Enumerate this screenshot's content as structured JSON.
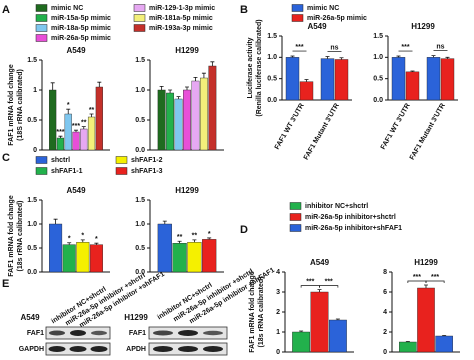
{
  "chart_data": [
    {
      "type": "bar",
      "panel": "A",
      "ylabel": [
        "FAF1 mRNA fold change",
        "(18S rRNA calibrated)"
      ],
      "subplots": [
        {
          "title": "A549",
          "ylim": [
            0,
            1.5
          ],
          "yticks": [
            0,
            0.5,
            1,
            1.5
          ]
        },
        {
          "title": "H1299",
          "ylim": [
            0,
            1.5
          ],
          "yticks": [
            {
              "value": 0,
              "label": "0.0"
            },
            0.5,
            {
              "value": 1,
              "label": "1.0"
            },
            1.5
          ]
        }
      ],
      "series": [
        {
          "name": "mimic NC",
          "color": "#1f6b1f",
          "values": [
            1.0,
            1.0
          ],
          "errors": [
            0.12,
            0.06
          ],
          "significance": [
            null,
            null
          ]
        },
        {
          "name": "miR-15a-5p mimic",
          "color": "#22b14c",
          "values": [
            0.2,
            0.95
          ],
          "errors": [
            0.03,
            0.05
          ],
          "significance": [
            "***",
            null
          ]
        },
        {
          "name": "miR-18a-5p mimic",
          "color": "#7fc7ef",
          "values": [
            0.6,
            0.85
          ],
          "errors": [
            0.08,
            0.04
          ],
          "significance": [
            "*",
            null
          ]
        },
        {
          "name": "miR-26a-5p mimic",
          "color": "#e84fd8",
          "values": [
            0.3,
            1.0
          ],
          "errors": [
            0.03,
            0.05
          ],
          "significance": [
            "***",
            null
          ]
        },
        {
          "name": "miR-129-1-3p mimic",
          "color": "#e6a8f2",
          "values": [
            0.35,
            1.15
          ],
          "errors": [
            0.04,
            0.06
          ],
          "significance": [
            "**",
            null
          ]
        },
        {
          "name": "miR-181a-5p mimic",
          "color": "#f3f07a",
          "values": [
            0.55,
            1.2
          ],
          "errors": [
            0.05,
            0.08
          ],
          "significance": [
            "**",
            null
          ]
        },
        {
          "name": "miR-193a-3p mimic",
          "color": "#c4302a",
          "values": [
            1.05,
            1.4
          ],
          "errors": [
            0.08,
            0.07
          ],
          "significance": [
            null,
            null
          ]
        }
      ]
    },
    {
      "type": "bar",
      "panel": "B",
      "ylabel": [
        "Luciferase activity",
        "(Renilla luciferase calibrated)"
      ],
      "categories": [
        "FAF1 WT 3'UTR",
        "FAF1 Mutant 3'UTR"
      ],
      "subplots": [
        {
          "title": "A549",
          "ylim": [
            0,
            1.5
          ],
          "yticks": [
            {
              "value": 0,
              "label": "0.0"
            },
            0.5,
            {
              "value": 1,
              "label": "1.0"
            },
            1.5
          ],
          "significance": [
            "***",
            "ns"
          ]
        },
        {
          "title": "H1299",
          "ylim": [
            0,
            1.5
          ],
          "yticks": [
            {
              "value": 0,
              "label": "0.0"
            },
            0.5,
            {
              "value": 1,
              "label": "1.0"
            },
            1.5
          ],
          "significance": [
            "***",
            "ns"
          ]
        }
      ],
      "series": [
        {
          "name": "mimic NC",
          "color": "#2b63d9",
          "values": [
            [
              1.0,
              0.97
            ],
            [
              1.0,
              1.0
            ]
          ],
          "errors": [
            [
              0.03,
              0.05
            ],
            [
              0.03,
              0.04
            ]
          ]
        },
        {
          "name": "miR-26a-5p mimic",
          "color": "#e8221e",
          "values": [
            [
              0.43,
              0.95
            ],
            [
              0.66,
              0.97
            ]
          ],
          "errors": [
            [
              0.05,
              0.04
            ],
            [
              0.02,
              0.03
            ]
          ]
        }
      ]
    },
    {
      "type": "bar",
      "panel": "C",
      "ylabel": [
        "FAF1 mRNA fold change",
        "(18s rRNA calibrated)"
      ],
      "subplots": [
        {
          "title": "A549",
          "ylim": [
            0,
            1.5
          ],
          "yticks": [
            {
              "value": 0,
              "label": "0.0"
            },
            0.5,
            {
              "value": 1,
              "label": "1.0"
            },
            1.5
          ]
        },
        {
          "title": "H1299",
          "ylim": [
            0,
            1.5
          ],
          "yticks": [
            {
              "value": 0,
              "label": "0.0"
            },
            0.5,
            {
              "value": 1,
              "label": "1.0"
            },
            1.5
          ]
        }
      ],
      "series": [
        {
          "name": "shctrl",
          "color": "#2b63d9",
          "values": [
            1.0,
            1.0
          ],
          "errors": [
            0.1,
            0.06
          ],
          "significance": [
            null,
            null
          ]
        },
        {
          "name": "shFAF1-1",
          "color": "#22b14c",
          "values": [
            0.57,
            0.6
          ],
          "errors": [
            0.04,
            0.04
          ],
          "significance": [
            "*",
            "**"
          ]
        },
        {
          "name": "shFAF1-2",
          "color": "#f5f000",
          "values": [
            0.62,
            0.62
          ],
          "errors": [
            0.05,
            0.05
          ],
          "significance": [
            "*",
            "**"
          ]
        },
        {
          "name": "shFAF1-3",
          "color": "#e8221e",
          "values": [
            0.57,
            0.68
          ],
          "errors": [
            0.03,
            0.03
          ],
          "significance": [
            "*",
            "*"
          ]
        }
      ]
    },
    {
      "type": "bar",
      "panel": "D",
      "ylabel": [
        "FAF1 mRNA fold change",
        "(18s rRNA calibrated)"
      ],
      "subplots": [
        {
          "title": "A549",
          "ylim": [
            0,
            4
          ],
          "yticks": [
            0,
            1,
            2,
            3,
            4
          ],
          "significance": [
            "***",
            "***"
          ]
        },
        {
          "title": "H1299",
          "ylim": [
            0,
            8
          ],
          "yticks": [
            0,
            2,
            4,
            6,
            8
          ],
          "significance": [
            "***",
            "***"
          ]
        }
      ],
      "series": [
        {
          "name": "inhibitor NC+shctrl",
          "color": "#22b14c",
          "values": [
            1.0,
            1.0
          ],
          "errors": [
            0.05,
            0.05
          ]
        },
        {
          "name": "miR-26a-5p inhibitor+shctrl",
          "color": "#e8221e",
          "values": [
            3.0,
            6.4
          ],
          "errors": [
            0.12,
            0.3
          ]
        },
        {
          "name": "miR-26a-5p inhibitor+shFAF1",
          "color": "#2b63d9",
          "values": [
            1.6,
            1.6
          ],
          "errors": [
            0.05,
            0.05
          ]
        }
      ]
    }
  ],
  "blot": {
    "panel": "E",
    "lanes": [
      "inhibitor NC+shctrl",
      "miR-26a-5p inhibitor +shctrl",
      "miR-26a-5p inhibitor +shFAF1"
    ],
    "cells": [
      {
        "name": "A549",
        "proteins": [
          "FAF1",
          "GAPDH"
        ]
      },
      {
        "name": "H1299",
        "proteins": [
          "FAF1",
          "APDH"
        ]
      }
    ]
  }
}
